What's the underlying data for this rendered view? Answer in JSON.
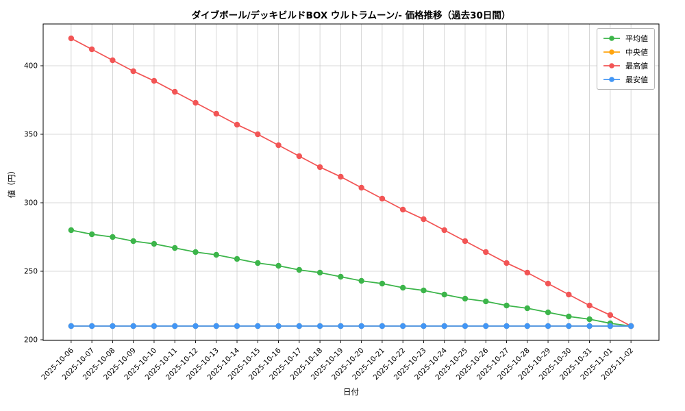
{
  "chart_data": {
    "type": "line",
    "title": "ダイブボール/デッキビルドBOX ウルトラムーン/- 価格推移（過去30日間）",
    "xlabel": "日付",
    "ylabel": "値（円）",
    "grid": true,
    "legend_position": "upper right",
    "ylim": [
      199.5,
      430.5
    ],
    "yticks": [
      200,
      250,
      300,
      350,
      400
    ],
    "x": [
      "2025-10-06",
      "2025-10-07",
      "2025-10-08",
      "2025-10-09",
      "2025-10-10",
      "2025-10-11",
      "2025-10-12",
      "2025-10-13",
      "2025-10-14",
      "2025-10-15",
      "2025-10-16",
      "2025-10-17",
      "2025-10-18",
      "2025-10-19",
      "2025-10-20",
      "2025-10-21",
      "2025-10-22",
      "2025-10-23",
      "2025-10-24",
      "2025-10-25",
      "2025-10-26",
      "2025-10-27",
      "2025-10-28",
      "2025-10-29",
      "2025-10-30",
      "2025-10-31",
      "2025-11-01",
      "2025-11-02"
    ],
    "series": [
      {
        "name": "平均値",
        "key": "average",
        "color": "#3cb54a",
        "values": [
          280,
          277,
          275,
          272,
          270,
          267,
          264,
          262,
          259,
          256,
          254,
          251,
          249,
          246,
          243,
          241,
          238,
          236,
          233,
          230,
          228,
          225,
          223,
          220,
          217,
          215,
          212,
          210
        ]
      },
      {
        "name": "中央値",
        "key": "median",
        "color": "#ffa510",
        "values": [
          210,
          210,
          210,
          210,
          210,
          210,
          210,
          210,
          210,
          210,
          210,
          210,
          210,
          210,
          210,
          210,
          210,
          210,
          210,
          210,
          210,
          210,
          210,
          210,
          210,
          210,
          210,
          210
        ]
      },
      {
        "name": "最高値",
        "key": "max",
        "color": "#f25555",
        "values": [
          420,
          412,
          404,
          396,
          389,
          381,
          373,
          365,
          357,
          350,
          342,
          334,
          326,
          319,
          311,
          303,
          295,
          288,
          280,
          272,
          264,
          256,
          249,
          241,
          233,
          225,
          218,
          210
        ]
      },
      {
        "name": "最安値",
        "key": "min",
        "color": "#4296f5",
        "values": [
          210,
          210,
          210,
          210,
          210,
          210,
          210,
          210,
          210,
          210,
          210,
          210,
          210,
          210,
          210,
          210,
          210,
          210,
          210,
          210,
          210,
          210,
          210,
          210,
          210,
          210,
          210,
          210
        ]
      }
    ]
  }
}
